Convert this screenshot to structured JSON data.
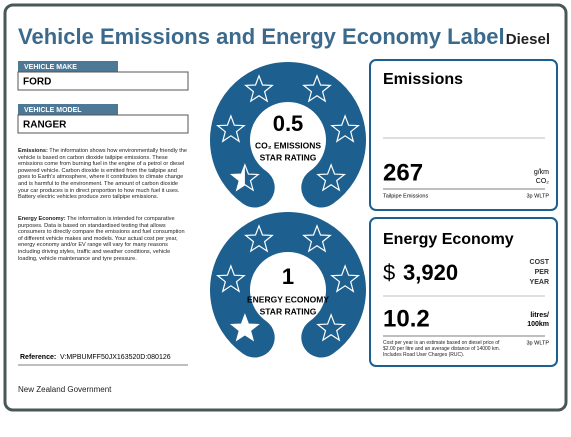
{
  "header": {
    "title": "Vehicle Emissions and Energy Economy Label",
    "fuel": "Diesel"
  },
  "vehicle": {
    "make_label": "VEHICLE MAKE",
    "make": "FORD",
    "model_label": "VEHICLE MODEL",
    "model": "RANGER"
  },
  "info": {
    "emissions_heading": "Emissions:",
    "emissions_text": "The information shows how environmentally friendly the vehicle is based on carbon dioxide tailpipe emissions. These emissions come from burning fuel in the engine of a petrol or diesel powered vehicle. Carbon dioxide is emitted from the tailpipe and goes to Earth's atmosphere, where it contributes to climate change and is harmful to the environment. The amount of carbon dioxide your car produces is in direct proportion to how much fuel it uses. Battery electric vehicles produce zero tailpipe emissions.",
    "economy_heading": "Energy Economy:",
    "economy_text": "The information is intended for comparative purposes. Data is based on standardised testing that allows consumers to directly compare the emissions and fuel consumption of different vehicle makes and models. Your actual cost per year, energy economy and/or EV range will vary for many reasons including driving styles, traffic and weather conditions, vehicle loading, vehicle maintenance and tyre pressure."
  },
  "reference": {
    "label": "Reference:",
    "value": "V:MPBUMFF50JX163520D:080126"
  },
  "footer": "New Zealand Government",
  "emissions": {
    "rating": "0.5",
    "rating_label": [
      "CO₂ EMISSIONS",
      "STAR RATING"
    ],
    "title": "Emissions",
    "value": "267",
    "unit": [
      "g/km",
      "CO₂"
    ],
    "caption": "Tailpipe Emissions",
    "test": "3p WLTP"
  },
  "economy": {
    "rating": "1",
    "rating_label": [
      "ENERGY ECONOMY",
      "STAR RATING"
    ],
    "title": "Energy Economy",
    "currency": "$",
    "cost": "3,920",
    "cost_unit": [
      "COST",
      "PER",
      "YEAR"
    ],
    "value": "10.2",
    "unit": [
      "litres/",
      "100km"
    ],
    "note": "Cost per year is an estimate based on diesel price of $2.00 per litre and an average distance of 14000 km. Includes Road User Charges (RUC).",
    "test": "3p WLTP"
  }
}
